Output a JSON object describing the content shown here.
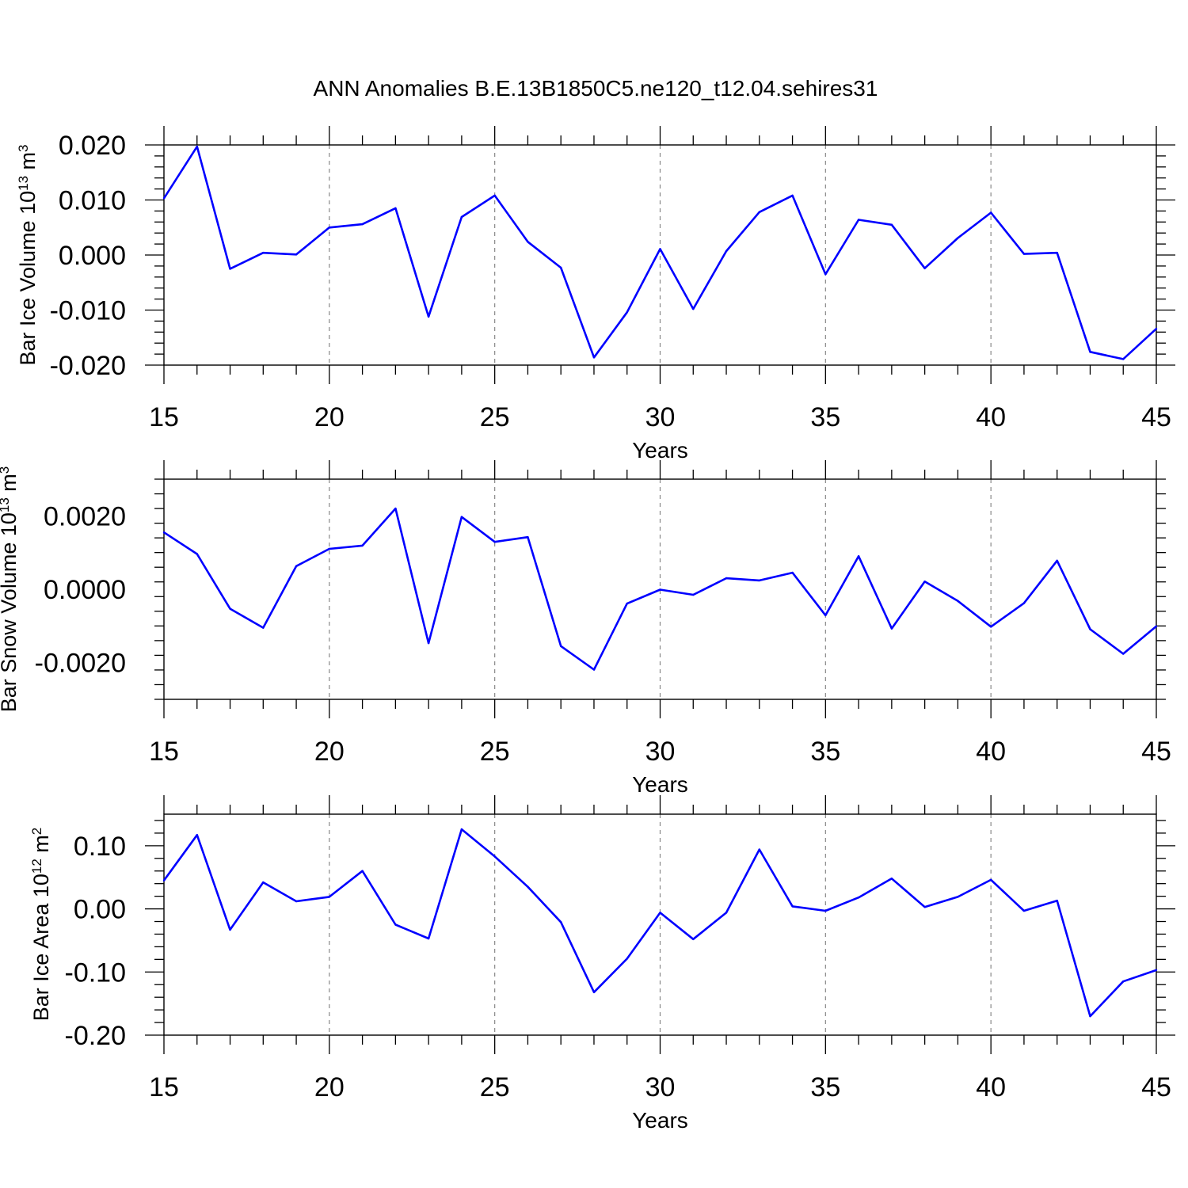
{
  "title": "ANN Anomalies B.E.13B1850C5.ne120_t12.04.sehires31",
  "colors": {
    "series": "#0000ff",
    "frame": "#000000",
    "grid": "#888888"
  },
  "chart_data": [
    {
      "type": "line",
      "xlabel": "Years",
      "ylabel": {
        "text": "Bar Ice Volume 10",
        "sup": "13",
        "unit": " m",
        "unit_sup": "3"
      },
      "xlim": [
        15,
        45
      ],
      "ylim": [
        -0.02,
        0.02
      ],
      "xticks": [
        15,
        20,
        25,
        30,
        35,
        40,
        45
      ],
      "xtick_labels": [
        "15",
        "20",
        "25",
        "30",
        "35",
        "40",
        "45"
      ],
      "yticks": [
        -0.02,
        -0.01,
        0.0,
        0.01,
        0.02
      ],
      "ytick_labels": [
        "-0.020",
        "-0.010",
        "0.000",
        "0.010",
        "0.020"
      ],
      "grid": "dashed vertical at major x ticks",
      "x": [
        15,
        16,
        17,
        18,
        19,
        20,
        21,
        22,
        23,
        24,
        25,
        26,
        27,
        28,
        29,
        30,
        31,
        32,
        33,
        34,
        35,
        36,
        37,
        38,
        39,
        40,
        41,
        42,
        43,
        44,
        45
      ],
      "y": [
        0.0103,
        0.0197,
        -0.0025,
        0.0004,
        0.0001,
        0.005,
        0.0056,
        0.0085,
        -0.0112,
        0.0069,
        0.0108,
        0.0024,
        -0.0023,
        -0.0186,
        -0.0104,
        0.0011,
        -0.0098,
        0.0007,
        0.0078,
        0.0108,
        -0.0035,
        0.0064,
        0.0055,
        -0.0024,
        0.0031,
        0.0077,
        0.0002,
        0.0004,
        -0.0176,
        -0.0189,
        -0.0134
      ]
    },
    {
      "type": "line",
      "xlabel": "Years",
      "ylabel": {
        "text": "Bar Snow Volume 10",
        "sup": "13",
        "unit": " m",
        "unit_sup": "3"
      },
      "xlim": [
        15,
        45
      ],
      "ylim": [
        -0.003,
        0.003
      ],
      "xticks": [
        15,
        20,
        25,
        30,
        35,
        40,
        45
      ],
      "xtick_labels": [
        "15",
        "20",
        "25",
        "30",
        "35",
        "40",
        "45"
      ],
      "yticks": [
        -0.002,
        0.0,
        0.002
      ],
      "ytick_labels": [
        "-0.0020",
        "0.0000",
        "0.0020"
      ],
      "grid": "dashed vertical at major x ticks",
      "x": [
        15,
        16,
        17,
        18,
        19,
        20,
        21,
        22,
        23,
        24,
        25,
        26,
        27,
        28,
        29,
        30,
        31,
        32,
        33,
        34,
        35,
        36,
        37,
        38,
        39,
        40,
        41,
        42,
        43,
        44,
        45
      ],
      "y": [
        0.00155,
        0.00096,
        -0.00053,
        -0.00105,
        0.00063,
        0.0011,
        0.00119,
        0.0022,
        -0.00147,
        0.00197,
        0.00129,
        0.00142,
        -0.00155,
        -0.00219,
        -0.00039,
        -1e-05,
        -0.00015,
        0.0003,
        0.00024,
        0.00045,
        -0.00071,
        0.0009,
        -0.00107,
        0.00021,
        -0.00032,
        -0.00102,
        -0.00038,
        0.00078,
        -0.00109,
        -0.00176,
        -0.00101
      ]
    },
    {
      "type": "line",
      "xlabel": "Years",
      "ylabel": {
        "text": "Bar Ice Area 10",
        "sup": "12",
        "unit": " m",
        "unit_sup": "2"
      },
      "xlim": [
        15,
        45
      ],
      "ylim": [
        -0.2,
        0.15
      ],
      "xticks": [
        15,
        20,
        25,
        30,
        35,
        40,
        45
      ],
      "xtick_labels": [
        "15",
        "20",
        "25",
        "30",
        "35",
        "40",
        "45"
      ],
      "yticks": [
        -0.2,
        -0.1,
        0.0,
        0.1
      ],
      "ytick_labels": [
        "-0.20",
        "-0.10",
        "0.00",
        "0.10"
      ],
      "grid": "dashed vertical at major x ticks",
      "x": [
        15,
        16,
        17,
        18,
        19,
        20,
        21,
        22,
        23,
        24,
        25,
        26,
        27,
        28,
        29,
        30,
        31,
        32,
        33,
        34,
        35,
        36,
        37,
        38,
        39,
        40,
        41,
        42,
        43,
        44,
        45
      ],
      "y": [
        0.045,
        0.117,
        -0.033,
        0.042,
        0.012,
        0.019,
        0.06,
        -0.025,
        -0.047,
        0.126,
        0.083,
        0.035,
        -0.021,
        -0.132,
        -0.079,
        -0.006,
        -0.048,
        -0.006,
        0.094,
        0.004,
        -0.003,
        0.018,
        0.048,
        0.003,
        0.019,
        0.046,
        -0.003,
        0.013,
        -0.17,
        -0.115,
        -0.097
      ]
    }
  ]
}
